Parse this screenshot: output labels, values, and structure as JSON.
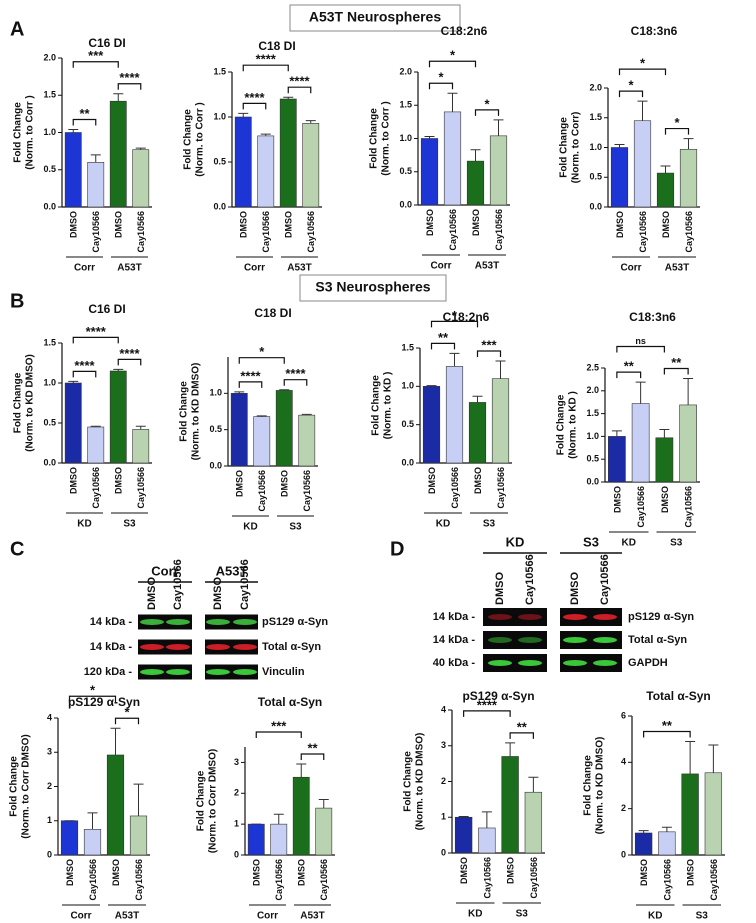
{
  "headers": [
    "A53T Neurospheres",
    "S3 Neurospheres"
  ],
  "panel_labels": [
    "A",
    "B",
    "C",
    "D"
  ],
  "blots": [
    {
      "groups": [
        "Corr",
        "A53T"
      ],
      "lanes": [
        "DMSO",
        "Cay10566"
      ],
      "rows": [
        {
          "size": "14 kDa -",
          "label": "pS129 α-Syn"
        },
        {
          "size": "14 kDa -",
          "label": "Total α-Syn"
        },
        {
          "size": "120 kDa -",
          "label": "Vinculin"
        }
      ]
    },
    {
      "groups": [
        "KD",
        "S3"
      ],
      "lanes": [
        "DMSO",
        "Cay10566"
      ],
      "rows": [
        {
          "size": "14 kDa -",
          "label": "pS129 α-Syn"
        },
        {
          "size": "14 kDa -",
          "label": "Total α-Syn"
        },
        {
          "size": "40 kDa -",
          "label": "GAPDH"
        }
      ]
    }
  ],
  "chart_data": [
    {
      "type": "bar",
      "title": "C16 DI",
      "ylabel": [
        "Fold Change",
        "(Norm. to Corr )"
      ],
      "categories": [
        "DMSO",
        "Cay10566",
        "DMSO",
        "Cay10566"
      ],
      "groups": [
        "Corr",
        "A53T"
      ],
      "values": [
        1.0,
        0.6,
        1.42,
        0.77
      ],
      "errors": [
        0.04,
        0.1,
        0.1,
        0.02
      ],
      "colors": [
        "#1c35d4",
        "#c8cff5",
        "#1b6e1b",
        "#b9d2b0"
      ],
      "ylim": [
        0,
        2.0
      ],
      "yticks": [
        {
          "value": 0,
          "label": "0.0"
        },
        0.5,
        {
          "value": 1,
          "label": "1.0"
        },
        1.5,
        {
          "value": 2,
          "label": "2.0"
        }
      ],
      "annotations": [
        {
          "text": "**",
          "from": 0,
          "to": 1
        },
        {
          "text": "****",
          "from": 2,
          "to": 3
        },
        {
          "text": "***",
          "from": 0,
          "to": 2
        }
      ]
    },
    {
      "type": "bar",
      "title": "C18 DI",
      "ylabel": [
        "Fold Change",
        "(Norm. to Corr )"
      ],
      "categories": [
        "DMSO",
        "Cay10566",
        "DMSO",
        "Cay10566"
      ],
      "groups": [
        "Corr",
        "A53T"
      ],
      "values": [
        1.0,
        0.79,
        1.2,
        0.93
      ],
      "errors": [
        0.04,
        0.02,
        0.02,
        0.03
      ],
      "colors": [
        "#1c35d4",
        "#c8cff5",
        "#1b6e1b",
        "#b9d2b0"
      ],
      "ylim": [
        0,
        1.5
      ],
      "yticks": [
        {
          "value": 0,
          "label": "0.0"
        },
        0.5,
        {
          "value": 1,
          "label": "1.0"
        },
        1.5
      ],
      "annotations": [
        {
          "text": "****",
          "from": 0,
          "to": 1
        },
        {
          "text": "****",
          "from": 2,
          "to": 3
        },
        {
          "text": "****",
          "from": 0,
          "to": 2
        }
      ]
    },
    {
      "type": "bar",
      "title": "C18:2n6",
      "ylabel": [
        "Fold Change",
        "(Norm. to Corr )"
      ],
      "categories": [
        "DMSO",
        "Cay10566",
        "DMSO",
        "Cay10566"
      ],
      "groups": [
        "Corr",
        "A53T"
      ],
      "values": [
        1.0,
        1.4,
        0.66,
        1.04
      ],
      "errors": [
        0.03,
        0.28,
        0.17,
        0.24
      ],
      "colors": [
        "#1c35d4",
        "#c8cff5",
        "#1b6e1b",
        "#b9d2b0"
      ],
      "ylim": [
        0,
        2.0
      ],
      "yticks": [
        {
          "value": 0,
          "label": "0.0"
        },
        0.5,
        {
          "value": 1,
          "label": "1.0"
        },
        1.5,
        {
          "value": 2,
          "label": "2.0"
        }
      ],
      "annotations": [
        {
          "text": "*",
          "from": 0,
          "to": 1
        },
        {
          "text": "*",
          "from": 2,
          "to": 3
        },
        {
          "text": "*",
          "from": 0,
          "to": 2
        }
      ]
    },
    {
      "type": "bar",
      "title": "C18:3n6",
      "ylabel": [
        "Fold Change",
        "(Norm. to Corr)"
      ],
      "categories": [
        "DMSO",
        "Cay10566",
        "DMSO",
        "Cay10566"
      ],
      "groups": [
        "Corr",
        "A53T"
      ],
      "values": [
        1.0,
        1.45,
        0.57,
        0.97
      ],
      "errors": [
        0.05,
        0.33,
        0.12,
        0.18
      ],
      "colors": [
        "#1c35d4",
        "#c8cff5",
        "#1b6e1b",
        "#b9d2b0"
      ],
      "ylim": [
        0,
        2.0
      ],
      "yticks": [
        {
          "value": 0,
          "label": "0.0"
        },
        0.5,
        {
          "value": 1,
          "label": "1.0"
        },
        1.5,
        {
          "value": 2,
          "label": "2.0"
        }
      ],
      "annotations": [
        {
          "text": "*",
          "from": 0,
          "to": 1
        },
        {
          "text": "*",
          "from": 2,
          "to": 3
        },
        {
          "text": "*",
          "from": 0,
          "to": 2
        }
      ]
    },
    {
      "type": "bar",
      "title": "C16 DI",
      "ylabel": [
        "Fold Change",
        "(Norm. to KD DMSO)"
      ],
      "categories": [
        "DMSO",
        "Cay10566",
        "DMSO",
        "Cay10566"
      ],
      "groups": [
        "KD",
        "S3"
      ],
      "values": [
        1.0,
        0.45,
        1.15,
        0.42
      ],
      "errors": [
        0.02,
        0.01,
        0.02,
        0.04
      ],
      "colors": [
        "#1b2ba6",
        "#c8cff5",
        "#1b6e1b",
        "#b9d2b0"
      ],
      "ylim": [
        0,
        1.5
      ],
      "yticks": [
        {
          "value": 0,
          "label": "0.0"
        },
        0.5,
        {
          "value": 1,
          "label": "1.0"
        },
        1.5
      ],
      "annotations": [
        {
          "text": "****",
          "from": 0,
          "to": 1
        },
        {
          "text": "****",
          "from": 2,
          "to": 3
        },
        {
          "text": "****",
          "from": 0,
          "to": 2
        }
      ]
    },
    {
      "type": "bar",
      "title": "C18 DI",
      "ylabel": [
        "Fold Change",
        "(Norm. to KD DMSO)"
      ],
      "categories": [
        "DMSO",
        "Cay10566",
        "DMSO",
        "Cay10566"
      ],
      "groups": [
        "KD",
        "S3"
      ],
      "values": [
        1.0,
        0.68,
        1.04,
        0.7
      ],
      "errors": [
        0.02,
        0.01,
        0.01,
        0.01
      ],
      "colors": [
        "#1b2ba6",
        "#c8cff5",
        "#1b6e1b",
        "#b9d2b0"
      ],
      "ylim": [
        0,
        1.5
      ],
      "yticks": [
        {
          "value": 0,
          "label": "0.0"
        },
        0.5,
        {
          "value": 1,
          "label": "1.0"
        }
      ],
      "annotations": [
        {
          "text": "****",
          "from": 0,
          "to": 1
        },
        {
          "text": "****",
          "from": 2,
          "to": 3
        },
        {
          "text": "*",
          "from": 0,
          "to": 2
        }
      ]
    },
    {
      "type": "bar",
      "title": "C18:2n6",
      "ylabel": [
        "Fold Change",
        "(Norm. to KD )"
      ],
      "categories": [
        "DMSO",
        "Cay10566",
        "DMSO",
        "Cay10566"
      ],
      "groups": [
        "KD",
        "S3"
      ],
      "values": [
        1.0,
        1.26,
        0.79,
        1.1
      ],
      "errors": [
        0.01,
        0.17,
        0.08,
        0.23
      ],
      "colors": [
        "#1b2ba6",
        "#c8cff5",
        "#1b6e1b",
        "#b9d2b0"
      ],
      "ylim": [
        0,
        1.5
      ],
      "yticks": [
        {
          "value": 0,
          "label": "0.0"
        },
        0.5,
        {
          "value": 1,
          "label": "1.0"
        },
        1.5
      ],
      "annotations": [
        {
          "text": "**",
          "from": 0,
          "to": 1
        },
        {
          "text": "***",
          "from": 2,
          "to": 3
        },
        {
          "text": "*",
          "from": 0,
          "to": 2
        }
      ]
    },
    {
      "type": "bar",
      "title": "C18:3n6",
      "ylabel": [
        "Fold Change",
        "(Norm. to KD )"
      ],
      "categories": [
        "DMSO",
        "Cay10566",
        "DMSO",
        "Cay10566"
      ],
      "groups": [
        "KD",
        "S3"
      ],
      "values": [
        1.0,
        1.72,
        0.97,
        1.69
      ],
      "errors": [
        0.12,
        0.47,
        0.18,
        0.58
      ],
      "colors": [
        "#1b2ba6",
        "#c8cff5",
        "#1b6e1b",
        "#b9d2b0"
      ],
      "ylim": [
        0,
        2.5
      ],
      "yticks": [
        {
          "value": 0,
          "label": "0.0"
        },
        0.5,
        {
          "value": 1,
          "label": "1.0"
        },
        1.5,
        {
          "value": 2,
          "label": "2.0"
        },
        2.5
      ],
      "annotations": [
        {
          "text": "**",
          "from": 0,
          "to": 1
        },
        {
          "text": "**",
          "from": 2,
          "to": 3
        },
        {
          "text": "ns",
          "from": 0,
          "to": 2
        }
      ]
    },
    {
      "type": "bar",
      "title": "pS129 α-Syn",
      "ylabel": [
        "Fold Change",
        "(Norm. to Corr DMSO)"
      ],
      "categories": [
        "DMSO",
        "Cay10566",
        "DMSO",
        "Cay10566"
      ],
      "groups": [
        "Corr",
        "A53T"
      ],
      "values": [
        1.0,
        0.75,
        2.92,
        1.14
      ],
      "errors": [
        0,
        0.48,
        0.78,
        0.93
      ],
      "colors": [
        "#1c35d4",
        "#c8cff5",
        "#1b6e1b",
        "#b9d2b0"
      ],
      "ylim": [
        0,
        4
      ],
      "yticks": [
        0,
        1,
        2,
        3,
        4
      ],
      "annotations": [
        {
          "text": "*",
          "from": 2,
          "to": 3
        },
        {
          "text": "*",
          "from": 0,
          "to": 2
        }
      ]
    },
    {
      "type": "bar",
      "title": "Total α-Syn",
      "ylabel": [
        "Fold Change",
        "(Norm. to Corr DMSO)"
      ],
      "categories": [
        "DMSO",
        "Cay10566",
        "DMSO",
        "Cay10566"
      ],
      "groups": [
        "Corr",
        "A53T"
      ],
      "values": [
        1.0,
        1.0,
        2.52,
        1.52
      ],
      "errors": [
        0,
        0.32,
        0.43,
        0.28
      ],
      "colors": [
        "#1c35d4",
        "#c8cff5",
        "#1b6e1b",
        "#b9d2b0"
      ],
      "ylim": [
        0,
        3.5
      ],
      "yticks": [
        0,
        1,
        2,
        3
      ],
      "annotations": [
        {
          "text": "**",
          "from": 2,
          "to": 3
        },
        {
          "text": "***",
          "from": 0,
          "to": 2
        }
      ]
    },
    {
      "type": "bar",
      "title": "pS129 α-Syn",
      "ylabel": [
        "Fold Change",
        "(Norm. to KD DMSO)"
      ],
      "categories": [
        "DMSO",
        "Cay10566",
        "DMSO",
        "Cay10566"
      ],
      "groups": [
        "KD",
        "S3"
      ],
      "values": [
        1.0,
        0.7,
        2.7,
        1.7
      ],
      "errors": [
        0.02,
        0.45,
        0.38,
        0.42
      ],
      "colors": [
        "#1b2ba6",
        "#c8cff5",
        "#1b6e1b",
        "#b9d2b0"
      ],
      "ylim": [
        0,
        4
      ],
      "yticks": [
        0,
        1,
        2,
        3,
        4
      ],
      "annotations": [
        {
          "text": "**",
          "from": 2,
          "to": 3
        },
        {
          "text": "****",
          "from": 0,
          "to": 2
        }
      ]
    },
    {
      "type": "bar",
      "title": "Total α-Syn",
      "ylabel": [
        "Fold Change",
        "(Norm. to KD DMSO)"
      ],
      "categories": [
        "DMSO",
        "Cay10566",
        "DMSO",
        "Cay10566"
      ],
      "groups": [
        "KD",
        "S3"
      ],
      "values": [
        0.95,
        1.0,
        3.5,
        3.55
      ],
      "errors": [
        0.1,
        0.2,
        1.4,
        1.2
      ],
      "colors": [
        "#1b2ba6",
        "#c8cff5",
        "#1b6e1b",
        "#b9d2b0"
      ],
      "ylim": [
        0,
        6
      ],
      "yticks": [
        0,
        2,
        4,
        6
      ],
      "annotations": [
        {
          "text": "**",
          "from": 0,
          "to": 2
        }
      ]
    }
  ]
}
